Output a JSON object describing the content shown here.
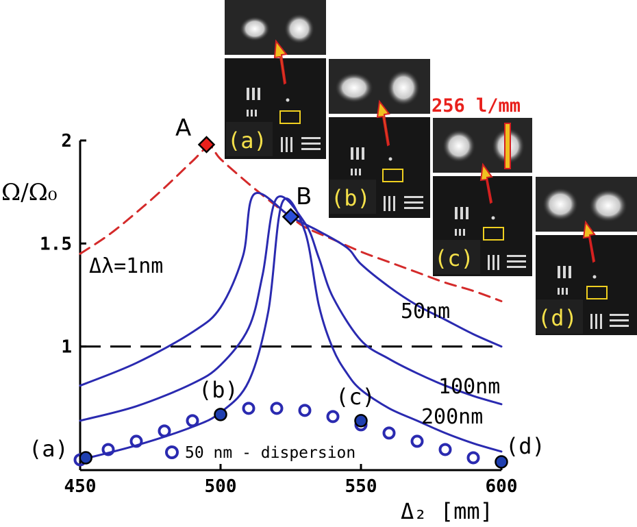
{
  "chart_data": {
    "type": "line",
    "xlabel": "Δ₂ [mm]",
    "ylabel": "Ω/Ω₀",
    "xlim": [
      450,
      600
    ],
    "ylim": [
      0.4,
      2.0
    ],
    "xticks": [
      450,
      500,
      550,
      600
    ],
    "yticks": [
      {
        "value": 2,
        "label": "2"
      },
      {
        "value": 1.5,
        "label": "1.5"
      },
      {
        "value": 1,
        "label": "1"
      }
    ],
    "reference_line": {
      "y": 1,
      "style": "dashed",
      "color": "#000000"
    },
    "series": [
      {
        "name": "Δλ=1nm",
        "style": "dashed",
        "color": "#d42a2a",
        "x": [
          450,
          460,
          470,
          480,
          490,
          496,
          500,
          510,
          520,
          525,
          530,
          540,
          550,
          560,
          570,
          580,
          590,
          600
        ],
        "y": [
          1.45,
          1.54,
          1.65,
          1.77,
          1.9,
          1.97,
          1.91,
          1.79,
          1.68,
          1.63,
          1.58,
          1.52,
          1.46,
          1.41,
          1.36,
          1.31,
          1.27,
          1.22
        ]
      },
      {
        "name": "50nm",
        "style": "solid",
        "color": "#2a2ab0",
        "x": [
          450,
          470,
          490,
          500,
          508,
          512,
          525,
          535,
          545,
          550,
          560,
          570,
          580,
          590,
          600
        ],
        "y": [
          0.81,
          0.92,
          1.07,
          1.19,
          1.44,
          1.74,
          1.63,
          1.56,
          1.48,
          1.4,
          1.29,
          1.2,
          1.13,
          1.06,
          1.0
        ]
      },
      {
        "name": "100nm",
        "style": "solid",
        "color": "#2a2ab0",
        "x": [
          450,
          470,
          490,
          500,
          510,
          515,
          520,
          530,
          535,
          540,
          550,
          560,
          570,
          580,
          590,
          600
        ],
        "y": [
          0.64,
          0.71,
          0.82,
          0.91,
          1.09,
          1.35,
          1.72,
          1.6,
          1.43,
          1.24,
          1.03,
          0.94,
          0.87,
          0.81,
          0.76,
          0.72
        ]
      },
      {
        "name": "200nm",
        "style": "solid",
        "color": "#2a2ab0",
        "x": [
          450,
          470,
          490,
          500,
          510,
          517,
          522,
          530,
          535,
          540,
          545,
          550,
          560,
          570,
          580,
          590,
          600
        ],
        "y": [
          0.45,
          0.52,
          0.61,
          0.68,
          0.83,
          1.17,
          1.7,
          1.56,
          1.2,
          0.99,
          0.87,
          0.79,
          0.7,
          0.64,
          0.58,
          0.53,
          0.49
        ]
      },
      {
        "name": "50 nm - dispersion",
        "style": "markers",
        "marker": "open-circle",
        "color": "#2a2ab0",
        "x": [
          450,
          460,
          470,
          480,
          490,
          500,
          510,
          520,
          530,
          540,
          550,
          560,
          570,
          580,
          590
        ],
        "y": [
          0.45,
          0.5,
          0.54,
          0.59,
          0.64,
          0.67,
          0.7,
          0.7,
          0.69,
          0.66,
          0.62,
          0.58,
          0.54,
          0.5,
          0.46
        ]
      }
    ],
    "special_points": [
      {
        "label": "A",
        "x": 495,
        "y": 1.98,
        "marker": "diamond",
        "color": "#e8201c"
      },
      {
        "label": "B",
        "x": 525,
        "y": 1.63,
        "marker": "diamond",
        "color": "#2b4fd8"
      }
    ],
    "measured_points": [
      {
        "label": "(a)",
        "x": 452,
        "y": 0.46
      },
      {
        "label": "(b)",
        "x": 500,
        "y": 0.67
      },
      {
        "label": "(c)",
        "x": 550,
        "y": 0.64
      },
      {
        "label": "(d)",
        "x": 600,
        "y": 0.44
      }
    ],
    "annotations": [
      "Δλ=1nm",
      "50nm",
      "100nm",
      "200nm",
      "50 nm - dispersion"
    ],
    "insets": [
      {
        "label": "(a)"
      },
      {
        "label": "(b)"
      },
      {
        "label": "(c)",
        "resolution_label": "256 l/mm"
      },
      {
        "label": "(d)"
      }
    ],
    "colors": {
      "axis": "#000000",
      "curve": "#2a2ab0",
      "marker": "#1f3fb0",
      "inset_label": "#f4e04a",
      "resolution_label": "#e8201c",
      "highlight_box": "#f0d020"
    }
  }
}
